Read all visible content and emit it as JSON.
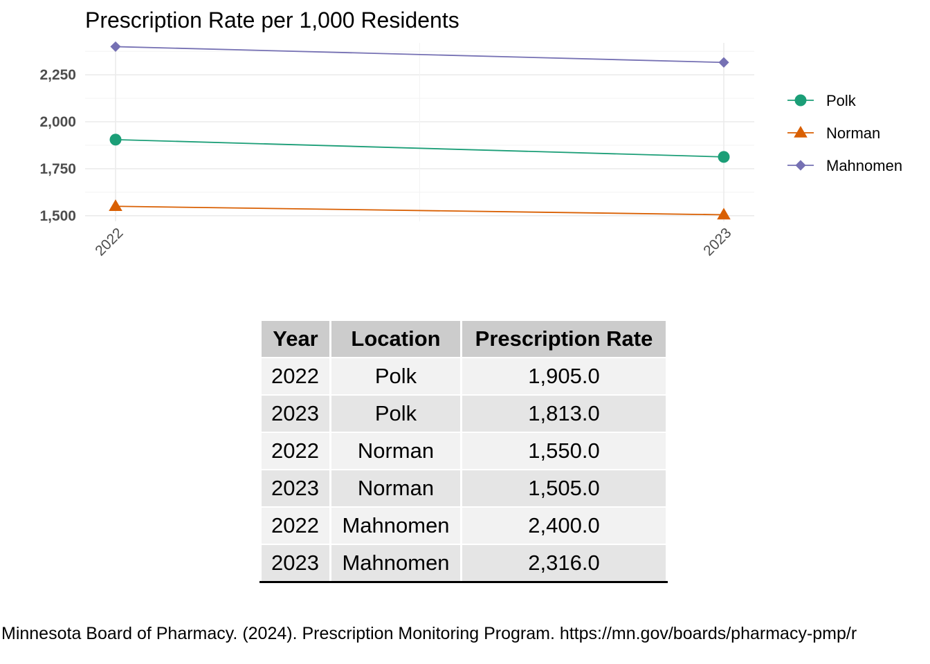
{
  "chart_data": {
    "type": "line",
    "title": "Prescription Rate per 1,000 Residents",
    "xlabel": "",
    "ylabel": "",
    "categories": [
      "2022",
      "2023"
    ],
    "y_ticks": [
      "1,500",
      "1,750",
      "2,000",
      "2,250"
    ],
    "ylim": [
      1470,
      2420
    ],
    "grid": true,
    "legend_position": "right",
    "series": [
      {
        "name": "Polk",
        "values": [
          1905,
          1813
        ],
        "color": "#1b9e77",
        "marker": "circle"
      },
      {
        "name": "Norman",
        "values": [
          1550,
          1505
        ],
        "color": "#d95f02",
        "marker": "triangle"
      },
      {
        "name": "Mahnomen",
        "values": [
          2400,
          2316
        ],
        "color": "#7570b3",
        "marker": "diamond"
      }
    ]
  },
  "table": {
    "headers": [
      "Year",
      "Location",
      "Prescription Rate"
    ],
    "rows": [
      [
        "2022",
        "Polk",
        "1,905.0"
      ],
      [
        "2023",
        "Polk",
        "1,813.0"
      ],
      [
        "2022",
        "Norman",
        "1,550.0"
      ],
      [
        "2023",
        "Norman",
        "1,505.0"
      ],
      [
        "2022",
        "Mahnomen",
        "2,400.0"
      ],
      [
        "2023",
        "Mahnomen",
        "2,316.0"
      ]
    ]
  },
  "citation": "Minnesota Board of Pharmacy. (2024). Prescription Monitoring Program. https://mn.gov/boards/pharmacy-pmp/r"
}
